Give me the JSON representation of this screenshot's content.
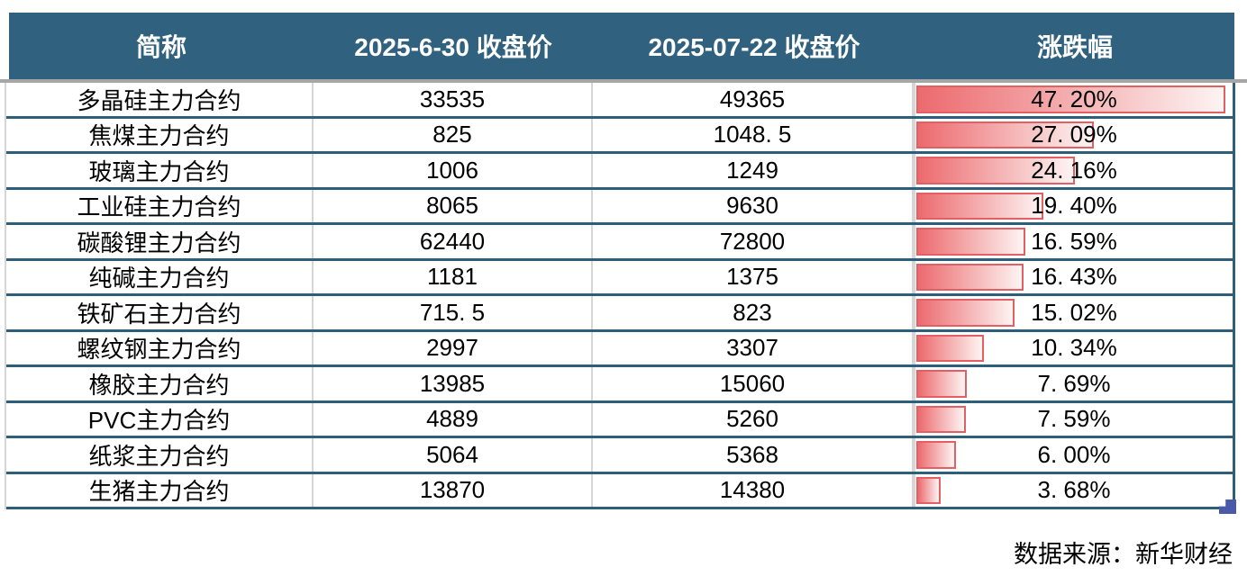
{
  "header": {
    "columns": [
      "简称",
      "2025-6-30 收盘价",
      "2025-07-22 收盘价",
      "涨跌幅"
    ]
  },
  "rows": [
    {
      "name": "多晶硅主力合约",
      "close_20250630": "33535",
      "close_20250722": "49365",
      "change_label": "47. 20%",
      "change_value": 47.2
    },
    {
      "name": "焦煤主力合约",
      "close_20250630": "825",
      "close_20250722": "1048. 5",
      "change_label": "27. 09%",
      "change_value": 27.09
    },
    {
      "name": "玻璃主力合约",
      "close_20250630": "1006",
      "close_20250722": "1249",
      "change_label": "24. 16%",
      "change_value": 24.16
    },
    {
      "name": "工业硅主力合约",
      "close_20250630": "8065",
      "close_20250722": "9630",
      "change_label": "19. 40%",
      "change_value": 19.4
    },
    {
      "name": "碳酸锂主力合约",
      "close_20250630": "62440",
      "close_20250722": "72800",
      "change_label": "16. 59%",
      "change_value": 16.59
    },
    {
      "name": "纯碱主力合约",
      "close_20250630": "1181",
      "close_20250722": "1375",
      "change_label": "16. 43%",
      "change_value": 16.43
    },
    {
      "name": "铁矿石主力合约",
      "close_20250630": "715. 5",
      "close_20250722": "823",
      "change_label": "15. 02%",
      "change_value": 15.02
    },
    {
      "name": "螺纹钢主力合约",
      "close_20250630": "2997",
      "close_20250722": "3307",
      "change_label": "10. 34%",
      "change_value": 10.34
    },
    {
      "name": "橡胶主力合约",
      "close_20250630": "13985",
      "close_20250722": "15060",
      "change_label": "7. 69%",
      "change_value": 7.69
    },
    {
      "name": "PVC主力合约",
      "close_20250630": "4889",
      "close_20250722": "5260",
      "change_label": "7. 59%",
      "change_value": 7.59
    },
    {
      "name": "纸浆主力合约",
      "close_20250630": "5064",
      "close_20250722": "5368",
      "change_label": "6. 00%",
      "change_value": 6.0
    },
    {
      "name": "生猪主力合约",
      "close_20250630": "13870",
      "close_20250722": "14380",
      "change_label": "3. 68%",
      "change_value": 3.68
    }
  ],
  "bar_max_value": 47.2,
  "footer": {
    "source": "数据来源：新华财经"
  },
  "colors": {
    "header_bg": "#30617F",
    "header_text": "#FFFFFF",
    "row_border": "#2D5E7A",
    "grid_line": "#D6D6D6",
    "header_divider": "#A6A6A6",
    "bar_border": "#E25F63",
    "bar_fill_start": "#EC6A6E",
    "bar_fill_end": "#FDF4F3",
    "body_text": "#000000",
    "fill_handle": "#4A5AA8"
  }
}
